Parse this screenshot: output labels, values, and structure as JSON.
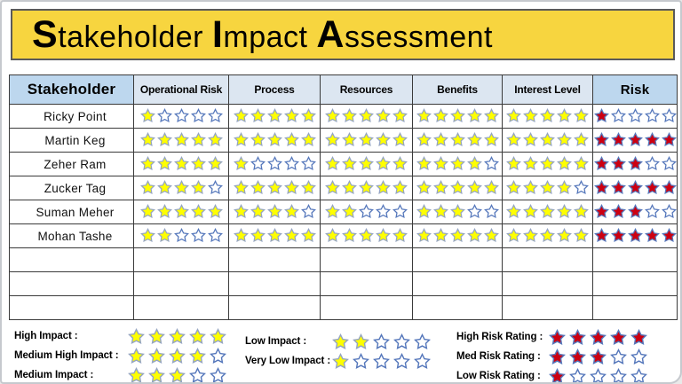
{
  "title": "Stakeholder Impact Assessment",
  "colors": {
    "banner_bg": "#F7D53F",
    "banner_border": "#5A5A5A",
    "header_primary_bg": "#BDD7EE",
    "header_secondary_bg": "#DCE6F1",
    "table_border": "#3A3A3A",
    "star_yellow_fill": "#FFFF00",
    "star_yellow_stroke": "#95A5C0",
    "star_red_fill": "#CC0011",
    "star_red_stroke": "#5577BB",
    "star_empty_fill": "#FFFFFF",
    "star_empty_stroke": "#5577BB"
  },
  "table": {
    "columns": [
      "Stakeholder",
      "Operational Risk",
      "Process",
      "Resources",
      "Benefits",
      "Interest Level",
      "Risk"
    ],
    "max_stars": 5,
    "rows": [
      {
        "name": "Ricky Point",
        "operational_risk": 1,
        "process": 5,
        "resources": 5,
        "benefits": 5,
        "interest_level": 5,
        "risk": 1
      },
      {
        "name": "Martin Keg",
        "operational_risk": 5,
        "process": 5,
        "resources": 5,
        "benefits": 5,
        "interest_level": 5,
        "risk": 5
      },
      {
        "name": "Zeher Ram",
        "operational_risk": 5,
        "process": 1,
        "resources": 5,
        "benefits": 4,
        "interest_level": 5,
        "risk": 3
      },
      {
        "name": "Zucker Tag",
        "operational_risk": 4,
        "process": 5,
        "resources": 5,
        "benefits": 5,
        "interest_level": 4,
        "risk": 5
      },
      {
        "name": "Suman Meher",
        "operational_risk": 5,
        "process": 4,
        "resources": 2,
        "benefits": 3,
        "interest_level": 5,
        "risk": 3
      },
      {
        "name": "Mohan Tashe",
        "operational_risk": 2,
        "process": 5,
        "resources": 5,
        "benefits": 5,
        "interest_level": 5,
        "risk": 5
      }
    ],
    "empty_row_count": 3
  },
  "legend": {
    "impact": [
      {
        "label": "High Impact :",
        "stars": 5
      },
      {
        "label": "Medium High Impact :",
        "stars": 4
      },
      {
        "label": "Medium Impact :",
        "stars": 3
      }
    ],
    "impact_low": [
      {
        "label": "Low Impact :",
        "stars": 2
      },
      {
        "label": "Very Low Impact :",
        "stars": 1
      }
    ],
    "risk": [
      {
        "label": "High Risk Rating :",
        "stars": 5
      },
      {
        "label": "Med Risk  Rating :",
        "stars": 3
      },
      {
        "label": "Low Risk  Rating :",
        "stars": 1
      }
    ]
  }
}
